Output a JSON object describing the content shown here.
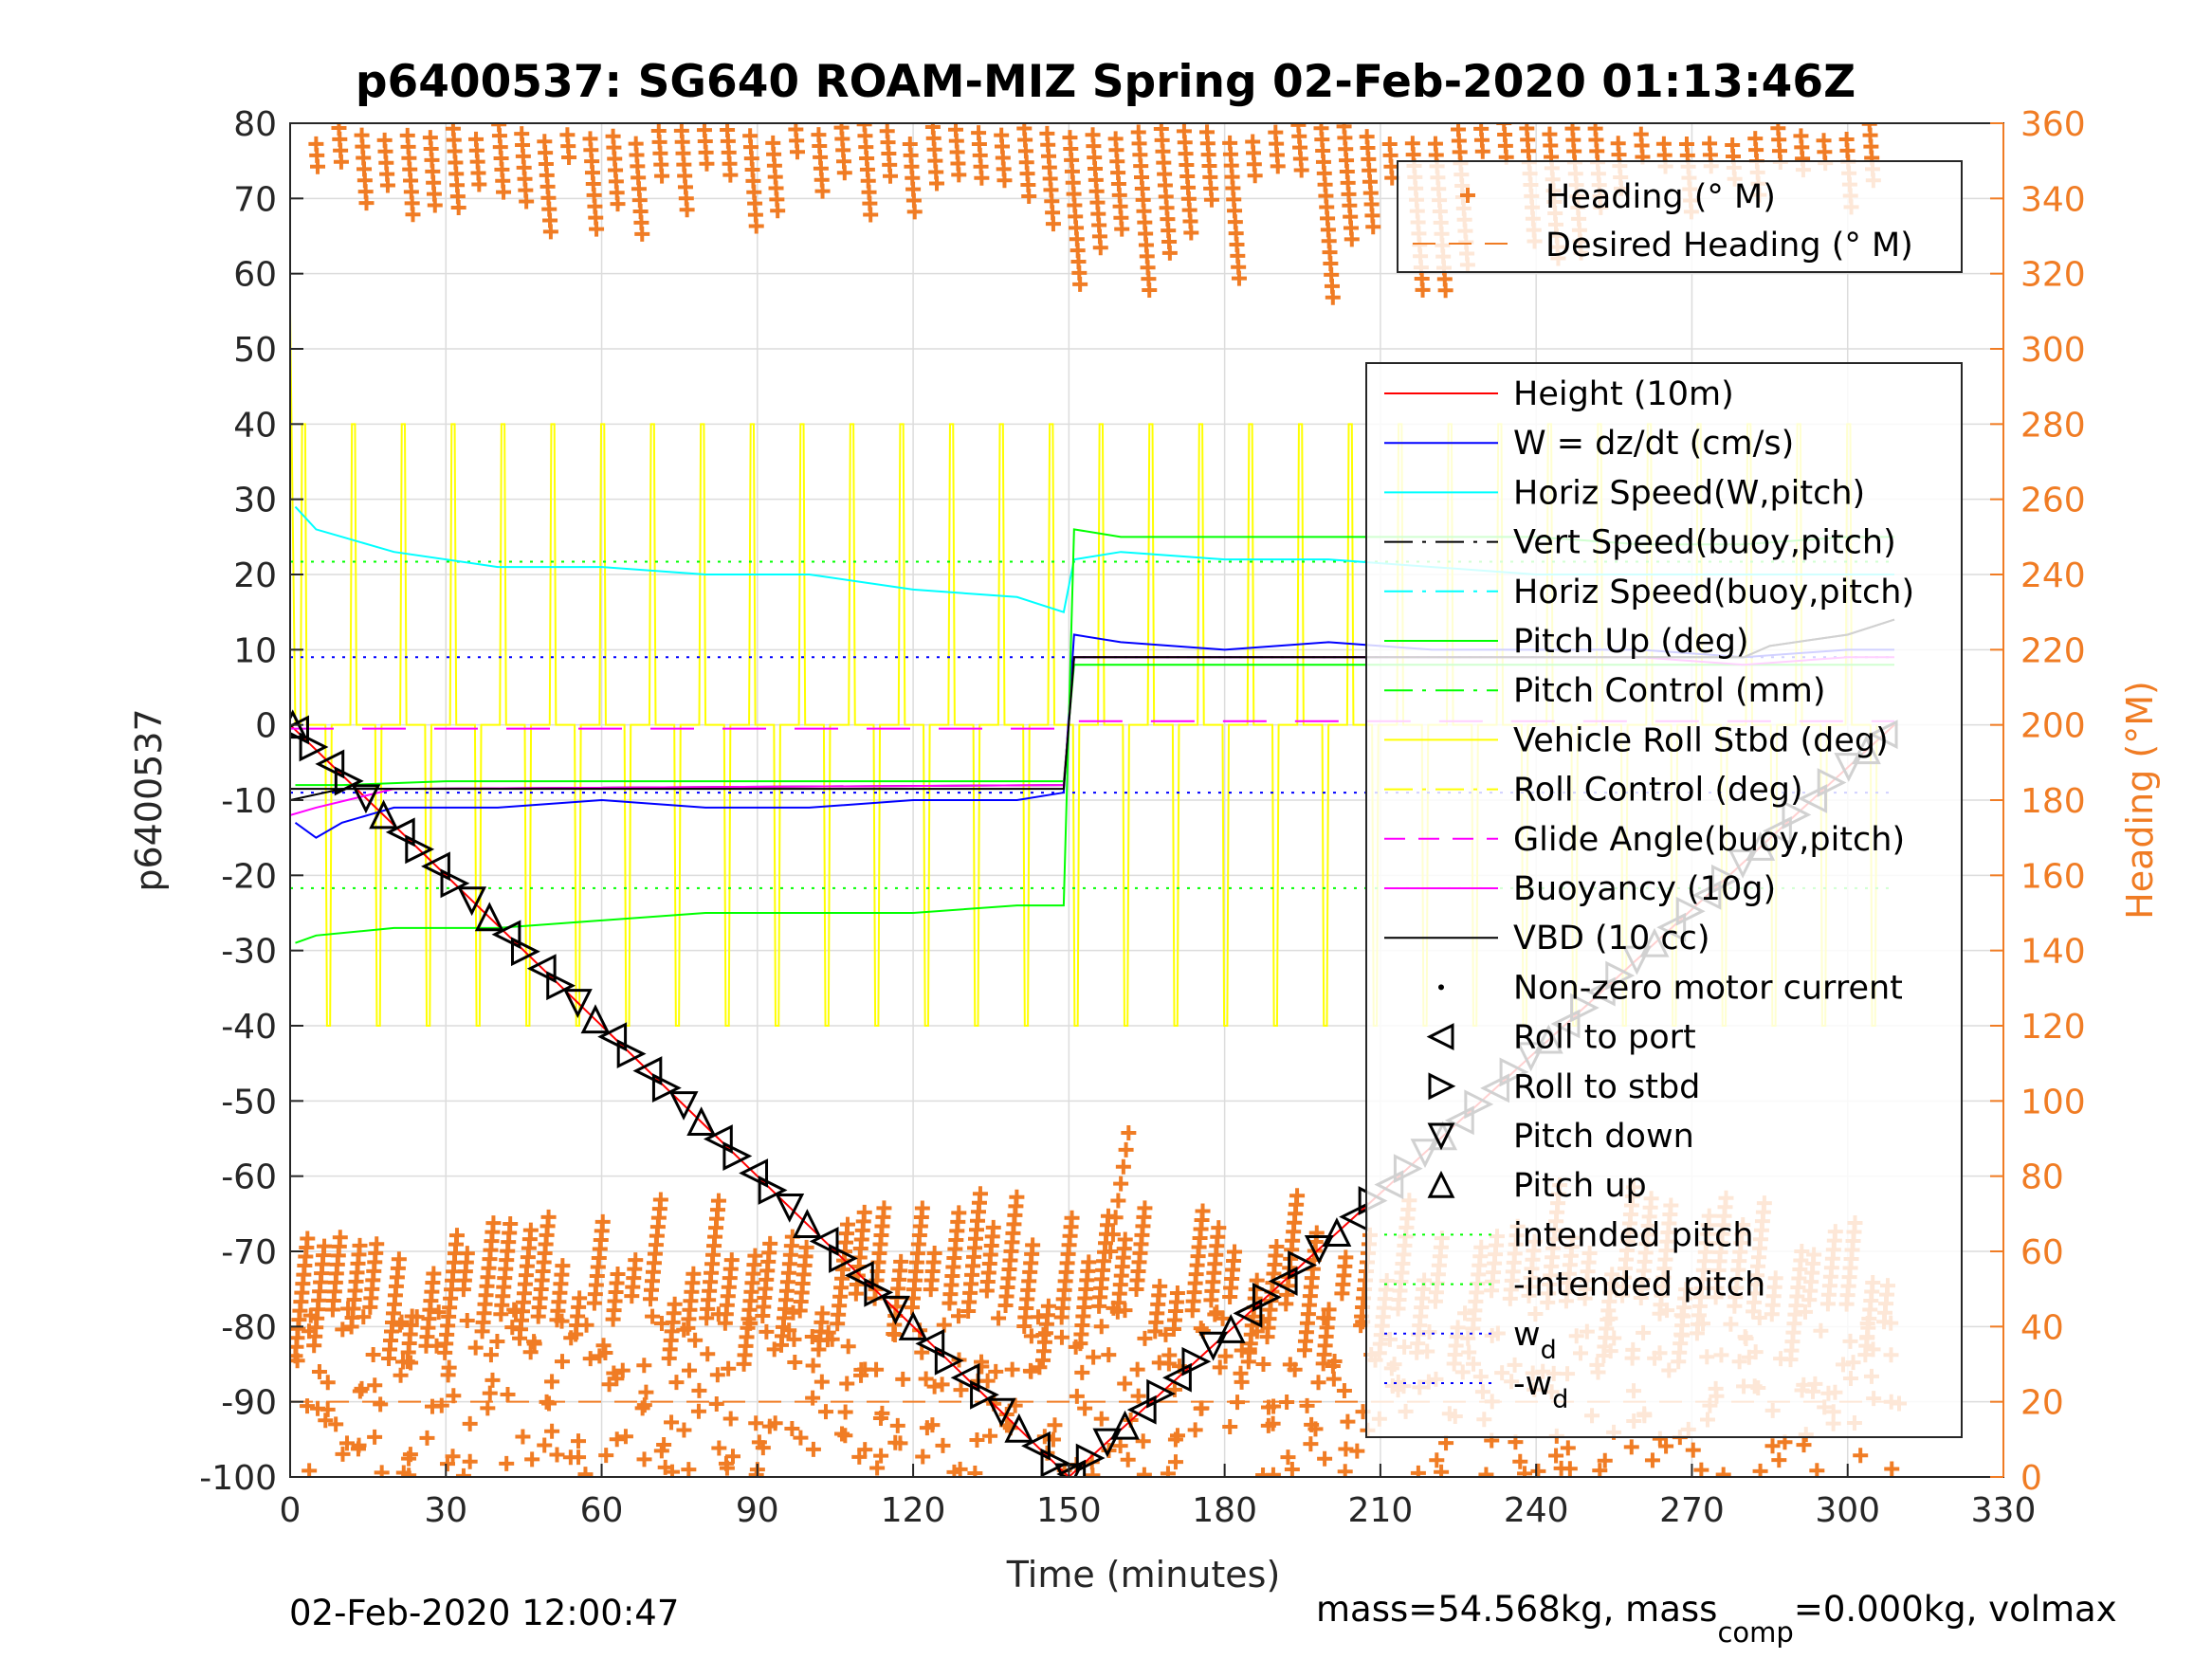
{
  "chart_data": {
    "type": "line",
    "title": "p6400537: SG640 ROAM-MIZ Spring 02-Feb-2020 01:13:46Z",
    "xlabel": "Time (minutes)",
    "ylabel": "p6400537",
    "y2label": "Heading (°M)",
    "xlim": [
      0,
      330
    ],
    "ylim": [
      -100,
      80
    ],
    "y2lim": [
      0,
      360
    ],
    "xticks": [
      "0",
      "30",
      "60",
      "90",
      "120",
      "150",
      "180",
      "210",
      "240",
      "270",
      "300",
      "330"
    ],
    "yticks": [
      "80",
      "70",
      "60",
      "50",
      "40",
      "30",
      "20",
      "10",
      "0",
      "-10",
      "-20",
      "-30",
      "-40",
      "-50",
      "-60",
      "-70",
      "-80",
      "-90",
      "-100"
    ],
    "y2ticks": [
      "360",
      "340",
      "320",
      "300",
      "280",
      "260",
      "240",
      "220",
      "200",
      "180",
      "160",
      "140",
      "120",
      "100",
      "80",
      "60",
      "40",
      "20",
      "0"
    ],
    "grid": true,
    "footer_left": "02-Feb-2020 12:00:47",
    "footer_right_a": "mass=54.568kg, mass",
    "footer_right_sub": "comp",
    "footer_right_b": "=0.000kg, volmax",
    "heading_legend": [
      {
        "label": "Heading (° M)",
        "style": "plus"
      },
      {
        "label": "Desired Heading (° M)",
        "style": "dash"
      }
    ],
    "legend": [
      {
        "label": "Height (10m)",
        "color": "#ff0000",
        "style": "line"
      },
      {
        "label": "W = dz/dt (cm/s)",
        "color": "#0000ff",
        "style": "line"
      },
      {
        "label": "Horiz Speed(W,pitch)",
        "color": "#00ffff",
        "style": "line"
      },
      {
        "label": "Vert Speed(buoy,pitch)",
        "color": "#000000",
        "style": "dashdot"
      },
      {
        "label": "Horiz Speed(buoy,pitch)",
        "color": "#00ffff",
        "style": "dashdot"
      },
      {
        "label": "Pitch Up (deg)",
        "color": "#00ff00",
        "style": "line"
      },
      {
        "label": "Pitch Control (mm)",
        "color": "#00ff00",
        "style": "dashdot"
      },
      {
        "label": "Vehicle Roll Stbd (deg)",
        "color": "#ffff00",
        "style": "line"
      },
      {
        "label": "Roll Control (deg)",
        "color": "#ffff00",
        "style": "dashdot"
      },
      {
        "label": "Glide Angle(buoy,pitch)",
        "color": "#ff00ff",
        "style": "dash"
      },
      {
        "label": "Buoyancy (10g)",
        "color": "#ff00ff",
        "style": "line"
      },
      {
        "label": "VBD (10 cc)",
        "color": "#000000",
        "style": "line"
      },
      {
        "label": "Non-zero motor current",
        "color": "#000000",
        "style": "dot"
      },
      {
        "label": "Roll to port",
        "color": "#000000",
        "style": "tri-left"
      },
      {
        "label": "Roll to stbd",
        "color": "#000000",
        "style": "tri-right"
      },
      {
        "label": "Pitch down",
        "color": "#000000",
        "style": "tri-down"
      },
      {
        "label": "Pitch up",
        "color": "#000000",
        "style": "tri-up"
      },
      {
        "label": "intended pitch",
        "color": "#00ff00",
        "style": "dotted"
      },
      {
        "label": "-intended pitch",
        "color": "#00ff00",
        "style": "dotted"
      },
      {
        "label": "w",
        "sub": "d",
        "color": "#0000ff",
        "style": "dotted"
      },
      {
        "label": "-w",
        "sub": "d",
        "color": "#0000ff",
        "style": "dotted"
      }
    ],
    "series": [
      {
        "name": "Height (10m)",
        "color": "#ff0000",
        "x": [
          0,
          150,
          309
        ],
        "y": [
          0,
          -100,
          0
        ]
      },
      {
        "name": "W = dz/dt (cm/s)",
        "color": "#0000ff",
        "x": [
          1,
          5,
          10,
          20,
          40,
          60,
          80,
          100,
          120,
          140,
          149,
          151,
          160,
          180,
          200,
          220,
          240,
          260,
          280,
          300,
          309
        ],
        "y": [
          -13,
          -15,
          -13,
          -11,
          -11,
          -10,
          -11,
          -11,
          -10,
          -10,
          -9,
          12,
          11,
          10,
          11,
          10,
          10,
          10,
          9,
          10,
          10
        ]
      },
      {
        "name": "Horiz Speed(W,pitch)",
        "color": "#00ffff",
        "x": [
          1,
          5,
          10,
          20,
          40,
          60,
          80,
          100,
          120,
          140,
          149,
          151,
          160,
          180,
          200,
          220,
          240,
          260,
          280,
          300,
          309
        ],
        "y": [
          29,
          26,
          25,
          23,
          21,
          21,
          20,
          20,
          18,
          17,
          15,
          22,
          23,
          22,
          22,
          21,
          20,
          20,
          20,
          20,
          20
        ]
      },
      {
        "name": "Vert Speed(buoy,pitch)",
        "color": "#000000",
        "x": [
          0,
          10,
          20,
          149,
          151,
          200,
          280,
          285,
          300,
          309
        ],
        "y": [
          -10,
          -8.5,
          -8.5,
          -8,
          9,
          9,
          9,
          10.5,
          12,
          14
        ]
      },
      {
        "name": "Pitch Up (deg)",
        "color": "#00ff00",
        "x": [
          1,
          5,
          20,
          40,
          60,
          80,
          100,
          120,
          140,
          149,
          151,
          160,
          180,
          200,
          220,
          240,
          260,
          280,
          300,
          309
        ],
        "y": [
          -29,
          -28,
          -27,
          -27,
          -26,
          -25,
          -25,
          -25,
          -24,
          -24,
          26,
          25,
          25,
          25,
          25,
          25,
          24,
          24,
          25,
          25
        ]
      },
      {
        "name": "Pitch Control (mm)",
        "color": "#00ff00",
        "x": [
          1,
          10,
          30,
          60,
          90,
          120,
          149,
          151,
          180,
          210,
          240,
          270,
          300,
          309
        ],
        "y": [
          -8,
          -8,
          -7.5,
          -7.5,
          -7.5,
          -7.5,
          -7.5,
          8,
          8,
          8,
          8,
          8,
          8,
          8
        ]
      },
      {
        "name": "Glide Angle(buoy,pitch)",
        "color": "#ff00ff",
        "x": [
          0,
          150,
          151,
          309
        ],
        "y": [
          -0.5,
          -0.5,
          0.5,
          0.5
        ]
      },
      {
        "name": "Buoyancy (10g)",
        "color": "#ff00ff",
        "x": [
          0,
          5,
          20,
          149,
          151,
          260,
          280,
          300,
          309
        ],
        "y": [
          -12,
          -11,
          -8.5,
          -8,
          9,
          9,
          8,
          9,
          9
        ]
      },
      {
        "name": "VBD (10 cc)",
        "color": "#000000",
        "x": [
          0,
          15,
          149,
          151,
          280,
          285,
          300,
          309
        ],
        "y": [
          -8.5,
          -8.5,
          -8.5,
          9,
          9,
          10.5,
          12,
          14
        ]
      }
    ],
    "reference_lines": [
      {
        "name": "intended pitch",
        "color": "#00ff00",
        "y": 21.7
      },
      {
        "name": "-intended pitch",
        "color": "#00ff00",
        "y": -21.7
      },
      {
        "name": "w_d",
        "color": "#0000ff",
        "y": 9
      },
      {
        "name": "-w_d",
        "color": "#0000ff",
        "y": -9
      }
    ],
    "desired_heading": {
      "color": "#f07c24",
      "heading_deg": 20
    },
    "heading_color": "#f07c24"
  }
}
